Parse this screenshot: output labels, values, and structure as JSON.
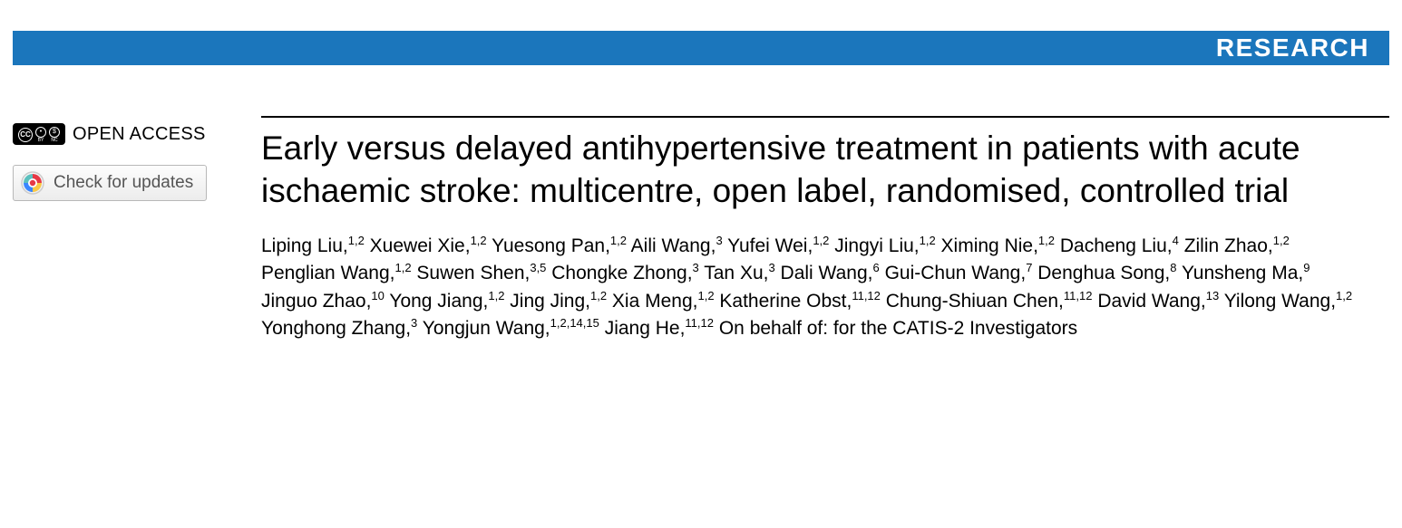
{
  "header": {
    "label": "RESEARCH",
    "bg_color": "#1b76bc",
    "text_color": "#ffffff"
  },
  "sidebar": {
    "open_access_label": "OPEN ACCESS",
    "updates_label": "Check for updates",
    "cc_by": "BY",
    "cc_nc": "NC"
  },
  "article": {
    "title": "Early versus delayed antihypertensive treatment in patients with acute ischaemic stroke: multicentre, open label, randomised, controlled trial",
    "authors": [
      {
        "name": "Liping Liu",
        "aff": "1,2"
      },
      {
        "name": "Xuewei Xie",
        "aff": "1,2"
      },
      {
        "name": "Yuesong Pan",
        "aff": "1,2"
      },
      {
        "name": "Aili Wang",
        "aff": "3"
      },
      {
        "name": "Yufei Wei",
        "aff": "1,2"
      },
      {
        "name": "Jingyi Liu",
        "aff": "1,2"
      },
      {
        "name": "Ximing Nie",
        "aff": "1,2"
      },
      {
        "name": "Dacheng Liu",
        "aff": "4"
      },
      {
        "name": "Zilin Zhao",
        "aff": "1,2"
      },
      {
        "name": "Penglian Wang",
        "aff": "1,2"
      },
      {
        "name": "Suwen Shen",
        "aff": "3,5"
      },
      {
        "name": "Chongke Zhong",
        "aff": "3"
      },
      {
        "name": "Tan Xu",
        "aff": "3"
      },
      {
        "name": "Dali Wang",
        "aff": "6"
      },
      {
        "name": "Gui-Chun Wang",
        "aff": "7"
      },
      {
        "name": "Denghua Song",
        "aff": "8"
      },
      {
        "name": "Yunsheng Ma",
        "aff": "9"
      },
      {
        "name": "Jinguo Zhao",
        "aff": "10"
      },
      {
        "name": "Yong Jiang",
        "aff": "1,2"
      },
      {
        "name": "Jing Jing",
        "aff": "1,2"
      },
      {
        "name": "Xia Meng",
        "aff": "1,2"
      },
      {
        "name": "Katherine Obst",
        "aff": "11,12"
      },
      {
        "name": "Chung-Shiuan Chen",
        "aff": "11,12"
      },
      {
        "name": "David Wang",
        "aff": "13"
      },
      {
        "name": "Yilong Wang",
        "aff": "1,2"
      },
      {
        "name": "Yonghong Zhang",
        "aff": "3"
      },
      {
        "name": "Yongjun Wang",
        "aff": "1,2,14,15"
      },
      {
        "name": "Jiang He",
        "aff": "11,12"
      }
    ],
    "trailing_text": "On behalf of: for the CATIS-2 Investigators"
  },
  "colors": {
    "rule": "#000000",
    "btn_border": "#b8b8b8",
    "btn_text": "#555555"
  }
}
